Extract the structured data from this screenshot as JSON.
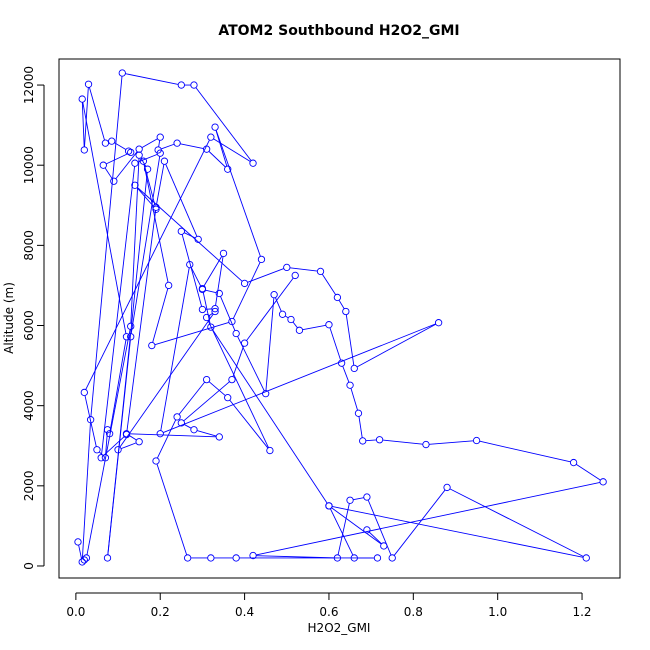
{
  "chart_data": {
    "type": "line",
    "title": "ATOM2 Southbound H2O2_GMI",
    "xlabel": "H2O2_GMI",
    "ylabel": "Altitude (m)",
    "xlim": [
      -0.04,
      1.29
    ],
    "ylim": [
      -300,
      12650
    ],
    "x_ticks": [
      0.0,
      0.2,
      0.4,
      0.6,
      0.8,
      1.0,
      1.2
    ],
    "x_tick_labels": [
      "0.0",
      "0.2",
      "0.4",
      "0.6",
      "0.8",
      "1.0",
      "1.2"
    ],
    "y_ticks": [
      0,
      2000,
      4000,
      6000,
      8000,
      10000,
      12000
    ],
    "y_tick_labels": [
      "0",
      "2000",
      "4000",
      "6000",
      "8000",
      "10000",
      "12000"
    ],
    "grid": false,
    "series": [
      {
        "color": "#0000ff",
        "marker": "open-circle",
        "x": [
          0.005,
          0.015,
          0.035,
          0.11,
          0.25,
          0.28,
          0.42,
          0.32,
          0.02,
          0.05,
          0.07,
          0.075,
          0.08,
          0.12,
          0.015,
          0.02,
          0.03,
          0.07,
          0.085,
          0.125,
          0.13,
          0.065,
          0.09,
          0.15,
          0.2,
          0.195,
          0.24,
          0.31,
          0.36,
          0.33,
          0.44,
          0.37,
          0.18,
          0.22,
          0.16,
          0.19,
          0.14,
          0.4,
          0.5,
          0.58,
          0.62,
          0.64,
          0.66,
          0.86,
          0.2,
          0.27,
          0.3,
          0.34,
          0.38,
          0.45,
          0.47,
          0.49,
          0.51,
          0.53,
          0.6,
          0.63,
          0.65,
          0.67,
          0.68,
          0.72,
          0.83,
          0.95,
          1.18,
          1.25,
          0.42,
          0.62,
          0.65,
          0.69,
          0.75,
          0.88,
          1.21,
          0.6,
          0.66,
          0.715,
          0.38,
          0.32,
          0.265,
          0.19,
          0.24,
          0.31,
          0.36,
          0.46,
          0.31,
          0.33,
          0.1,
          0.15,
          0.12,
          0.34,
          0.28,
          0.25,
          0.37,
          0.4,
          0.52
        ],
        "y": [
          600,
          100,
          3650,
          12300,
          12000,
          12000,
          10050,
          10700,
          4330,
          2900,
          2700,
          3400,
          3300,
          5720,
          11650,
          10380,
          12020,
          10550,
          10600,
          10350,
          10320,
          10000,
          9600,
          10400,
          10700,
          10380,
          10550,
          10400,
          9900,
          10950,
          7650,
          6100,
          5500,
          7000,
          10100,
          8900,
          9500,
          7050,
          7450,
          7350,
          6700,
          6350,
          4930,
          6070,
          3300,
          7520,
          6900,
          6800,
          5800,
          4300,
          6770,
          6280,
          6150,
          5880,
          6020,
          5060,
          4510,
          3810,
          3120,
          3150,
          3030,
          3130,
          2580,
          2100,
          260,
          200,
          1640,
          1720,
          200,
          1960,
          200,
          1500,
          200,
          200,
          200,
          200,
          200,
          2620,
          3720,
          4650,
          4200,
          2880,
          6200,
          6350,
          2900,
          3100,
          3300,
          3220,
          3400,
          3570,
          4650,
          5560,
          7250
        ]
      },
      {
        "color": "#0000ff",
        "marker": "open-circle",
        "x": [
          0.02,
          0.025,
          0.13,
          0.15,
          0.17,
          0.075,
          0.13,
          0.2,
          0.14,
          0.06,
          0.12,
          0.19,
          0.21,
          0.29,
          0.25,
          0.3,
          0.33,
          0.35,
          0.3,
          0.32,
          0.6,
          0.73,
          0.69
        ],
        "y": [
          150,
          200,
          5980,
          10250,
          9900,
          200,
          5720,
          10300,
          10050,
          2700,
          3280,
          8950,
          10100,
          8150,
          8350,
          6400,
          6420,
          7800,
          6920,
          5960,
          1500,
          500,
          900
        ]
      }
    ]
  }
}
